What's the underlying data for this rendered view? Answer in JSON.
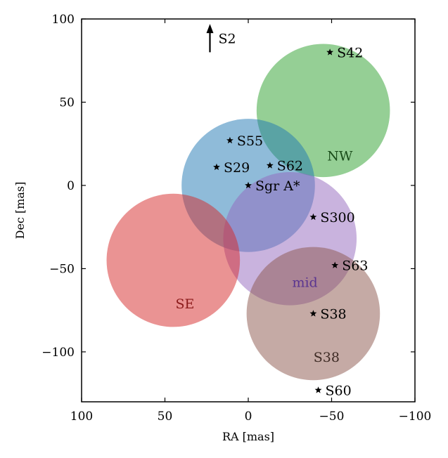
{
  "chart_data": {
    "type": "scatter",
    "xlabel": "RA [mas]",
    "ylabel": "Dec [mas]",
    "xlim": [
      100,
      -100
    ],
    "ylim": [
      -130,
      100
    ],
    "x_ticks": [
      100,
      50,
      0,
      -50,
      -100
    ],
    "y_ticks": [
      100,
      50,
      0,
      -50,
      -100
    ],
    "x_tick_labels": [
      "100",
      "50",
      "0",
      "−50",
      "−100"
    ],
    "y_tick_labels": [
      "100",
      "50",
      "0",
      "−50",
      "−100"
    ],
    "grid": false,
    "fields": [
      {
        "name": "NW",
        "center": [
          -45,
          45
        ],
        "radius": 40,
        "color": "#2ca02c",
        "label_color": "#1a4d1a",
        "label_at": [
          -55,
          18
        ]
      },
      {
        "name": "",
        "center": [
          0,
          0
        ],
        "radius": 40,
        "color": "#1f77b4",
        "label_color": "#1f77b4",
        "label_at": [
          0,
          0
        ]
      },
      {
        "name": "mid",
        "center": [
          -25,
          -32
        ],
        "radius": 40,
        "color": "#9467bd",
        "label_color": "#5a3590",
        "label_at": [
          -34,
          -58
        ]
      },
      {
        "name": "SE",
        "center": [
          45,
          -45
        ],
        "radius": 40,
        "color": "#d62728",
        "label_color": "#8b1a1a",
        "label_at": [
          38,
          -71
        ]
      },
      {
        "name": "S38",
        "center": [
          -39,
          -77
        ],
        "radius": 40,
        "color": "#8c564b",
        "label_color": "#3d2a24",
        "label_at": [
          -47,
          -103
        ]
      }
    ],
    "stars": [
      {
        "name": "S42",
        "x": -49,
        "y": 80
      },
      {
        "name": "S55",
        "x": 11,
        "y": 27
      },
      {
        "name": "S62",
        "x": -13,
        "y": 12
      },
      {
        "name": "S29",
        "x": 19,
        "y": 11
      },
      {
        "name": "Sgr A*",
        "x": 0,
        "y": 0
      },
      {
        "name": "S300",
        "x": -39,
        "y": -19
      },
      {
        "name": "S63",
        "x": -52,
        "y": -48
      },
      {
        "name": "S38",
        "x": -39,
        "y": -77
      },
      {
        "name": "S60",
        "x": -42,
        "y": -123
      }
    ],
    "arrow": {
      "name": "S2",
      "x": 23,
      "y_from": 80,
      "y_to": 97
    }
  }
}
